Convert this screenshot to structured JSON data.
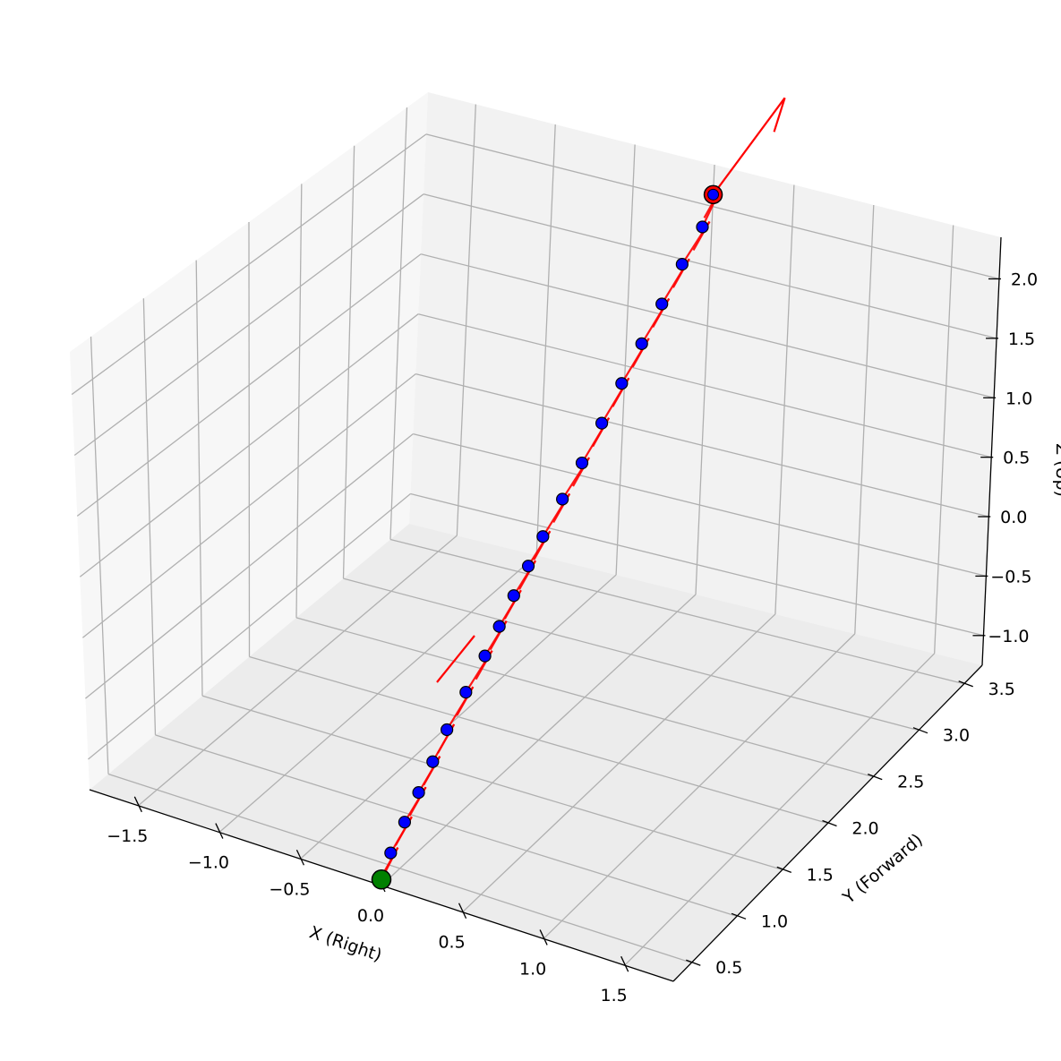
{
  "chart_data": {
    "type": "scatter3d",
    "xlabel": "X (Right)",
    "ylabel": "Y (Forward)",
    "zlabel": "Z (Up)",
    "xlim": [
      -1.8,
      1.8
    ],
    "ylim": [
      0.3,
      3.7
    ],
    "zlim": [
      -1.25,
      2.35
    ],
    "x_ticks": [
      -1.5,
      -1.0,
      -0.5,
      0.0,
      0.5,
      1.0,
      1.5
    ],
    "y_ticks": [
      0.5,
      1.0,
      1.5,
      2.0,
      2.5,
      3.0,
      3.5
    ],
    "z_ticks": [
      -1.0,
      -0.5,
      0.0,
      0.5,
      1.0,
      1.5,
      2.0
    ],
    "x_tick_labels": [
      "−1.5",
      "−1.0",
      "−0.5",
      "0.0",
      "0.5",
      "1.0",
      "1.5"
    ],
    "y_tick_labels": [
      "0.5",
      "1.0",
      "1.5",
      "2.0",
      "2.5",
      "3.0",
      "3.5"
    ],
    "z_tick_labels": [
      "−1.0",
      "−0.5",
      "0.0",
      "0.5",
      "1.0",
      "1.5",
      "2.0"
    ],
    "grid": true,
    "start_point": {
      "x": 0.0,
      "y": 0.3,
      "z": -1.2,
      "color": "#008000"
    },
    "end_point": {
      "x": 0.0,
      "y": 3.7,
      "z": 2.1,
      "color": "#ff0000"
    },
    "trajectory_points": {
      "color": "#0000ff",
      "points": [
        {
          "x": 0.0,
          "y": 0.4,
          "z": -1.05
        },
        {
          "x": 0.0,
          "y": 0.55,
          "z": -0.9
        },
        {
          "x": 0.0,
          "y": 0.7,
          "z": -0.76
        },
        {
          "x": 0.0,
          "y": 0.85,
          "z": -0.61
        },
        {
          "x": 0.0,
          "y": 1.0,
          "z": -0.45
        },
        {
          "x": 0.0,
          "y": 1.2,
          "z": -0.28
        },
        {
          "x": 0.0,
          "y": 1.4,
          "z": -0.12
        },
        {
          "x": 0.0,
          "y": 1.55,
          "z": 0.02
        },
        {
          "x": 0.0,
          "y": 1.7,
          "z": 0.17
        },
        {
          "x": 0.0,
          "y": 1.85,
          "z": 0.31
        },
        {
          "x": 0.0,
          "y": 2.0,
          "z": 0.45
        },
        {
          "x": 0.0,
          "y": 2.2,
          "z": 0.62
        },
        {
          "x": 0.0,
          "y": 2.4,
          "z": 0.78
        },
        {
          "x": 0.0,
          "y": 2.6,
          "z": 0.97
        },
        {
          "x": 0.0,
          "y": 2.8,
          "z": 1.16
        },
        {
          "x": 0.0,
          "y": 3.0,
          "z": 1.35
        },
        {
          "x": 0.0,
          "y": 3.2,
          "z": 1.54
        },
        {
          "x": 0.0,
          "y": 3.4,
          "z": 1.73
        },
        {
          "x": 0.0,
          "y": 3.6,
          "z": 1.9
        }
      ]
    },
    "direction_arrows": {
      "color": "#ff0000"
    }
  }
}
